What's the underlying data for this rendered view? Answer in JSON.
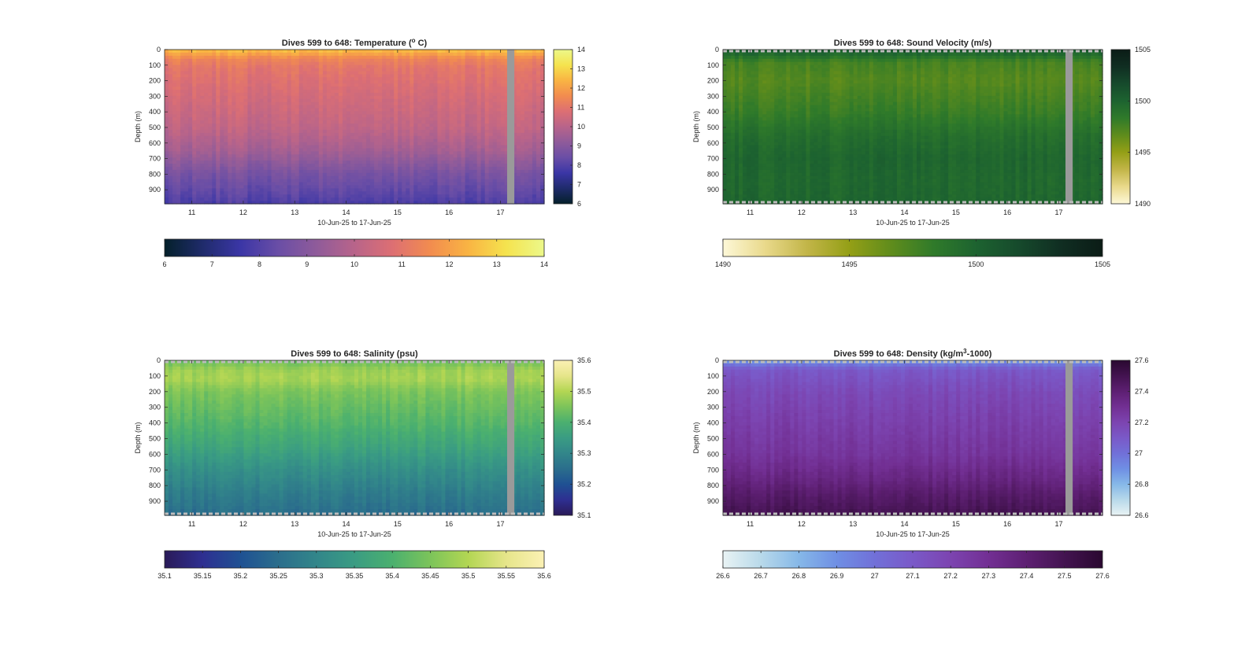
{
  "chart_data": [
    {
      "type": "heatmap",
      "id": "temperature",
      "title": "Dives 599 to 648: Temperature (",
      "title_sup": "o",
      "title_post": " C)",
      "xlabel": "10-Jun-25 to 17-Jun-25",
      "ylabel": "Depth (m)",
      "xticks": [
        "11",
        "12",
        "13",
        "14",
        "15",
        "16",
        "17"
      ],
      "xlim": [
        10.47,
        17.85
      ],
      "yticks": [
        0,
        100,
        200,
        300,
        400,
        500,
        600,
        700,
        800,
        900
      ],
      "ylim": [
        0,
        990
      ],
      "clim": [
        6,
        14
      ],
      "colorbar_ticks": [
        "6",
        "7",
        "8",
        "9",
        "10",
        "11",
        "12",
        "13",
        "14"
      ],
      "hcolorbar_ticks": [
        "6",
        "7",
        "8",
        "9",
        "10",
        "11",
        "12",
        "13",
        "14"
      ],
      "colormap": [
        "#04202a",
        "#1f2b6b",
        "#3b36a6",
        "#6a4ea6",
        "#8f5b9a",
        "#b8648a",
        "#dd6f73",
        "#f28c4f",
        "#f9b443",
        "#f5e34e",
        "#ecf88a"
      ],
      "profile": [
        {
          "d": 0,
          "v": 12.6
        },
        {
          "d": 20,
          "v": 12.3
        },
        {
          "d": 60,
          "v": 11.4
        },
        {
          "d": 120,
          "v": 11.0
        },
        {
          "d": 300,
          "v": 10.6
        },
        {
          "d": 500,
          "v": 10.2
        },
        {
          "d": 650,
          "v": 9.6
        },
        {
          "d": 800,
          "v": 8.7
        },
        {
          "d": 900,
          "v": 8.3
        },
        {
          "d": 990,
          "v": 7.9
        }
      ],
      "gap_x": [
        17.13,
        17.27
      ],
      "dashed_edges": false
    },
    {
      "type": "heatmap",
      "id": "sound_velocity",
      "title": "Dives 599 to 648: Sound Velocity (m/s)",
      "xlabel": "10-Jun-25 to 17-Jun-25",
      "ylabel": "Depth (m)",
      "xticks": [
        "11",
        "12",
        "13",
        "14",
        "15",
        "16",
        "17"
      ],
      "xlim": [
        10.47,
        17.85
      ],
      "yticks": [
        0,
        100,
        200,
        300,
        400,
        500,
        600,
        700,
        800,
        900
      ],
      "ylim": [
        0,
        990
      ],
      "clim": [
        1490,
        1505
      ],
      "colorbar_ticks": [
        "1490",
        "1495",
        "1500",
        "1505"
      ],
      "hcolorbar_ticks": [
        "1490",
        "1495",
        "1500",
        "1505"
      ],
      "colormap": [
        "#fdf8d8",
        "#e9d98b",
        "#c2b548",
        "#949f16",
        "#5f8c1c",
        "#2f7a2a",
        "#1d6330",
        "#164a2c",
        "#102e22",
        "#0b1c16"
      ],
      "profile": [
        {
          "d": 0,
          "v": 1500.5
        },
        {
          "d": 30,
          "v": 1499.5
        },
        {
          "d": 80,
          "v": 1497.5
        },
        {
          "d": 200,
          "v": 1497.0
        },
        {
          "d": 400,
          "v": 1498.0
        },
        {
          "d": 550,
          "v": 1499.2
        },
        {
          "d": 700,
          "v": 1499.8
        },
        {
          "d": 850,
          "v": 1499.6
        },
        {
          "d": 990,
          "v": 1499.8
        }
      ],
      "gap_x": [
        17.13,
        17.27
      ],
      "dashed_edges": true
    },
    {
      "type": "heatmap",
      "id": "salinity",
      "title": "Dives 599 to 648: Salinity (psu)",
      "xlabel": "10-Jun-25 to 17-Jun-25",
      "ylabel": "Depth (m)",
      "xticks": [
        "11",
        "12",
        "13",
        "14",
        "15",
        "16",
        "17"
      ],
      "xlim": [
        10.47,
        17.85
      ],
      "yticks": [
        0,
        100,
        200,
        300,
        400,
        500,
        600,
        700,
        800,
        900
      ],
      "ylim": [
        0,
        990
      ],
      "clim": [
        35.1,
        35.6
      ],
      "colorbar_ticks": [
        "35.1",
        "35.2",
        "35.3",
        "35.4",
        "35.5",
        "35.6"
      ],
      "hcolorbar_ticks": [
        "35.1",
        "35.15",
        "35.2",
        "35.25",
        "35.3",
        "35.35",
        "35.4",
        "35.45",
        "35.5",
        "35.55",
        "35.6"
      ],
      "colormap": [
        "#2a1a58",
        "#2e2f91",
        "#1f5193",
        "#2b6e8c",
        "#32868a",
        "#3a9c83",
        "#4bb06f",
        "#7cc45a",
        "#b3d653",
        "#e6e58a",
        "#fbf1b4"
      ],
      "profile": [
        {
          "d": 0,
          "v": 35.43
        },
        {
          "d": 60,
          "v": 35.48
        },
        {
          "d": 120,
          "v": 35.49
        },
        {
          "d": 200,
          "v": 35.45
        },
        {
          "d": 400,
          "v": 35.41
        },
        {
          "d": 550,
          "v": 35.37
        },
        {
          "d": 700,
          "v": 35.32
        },
        {
          "d": 850,
          "v": 35.28
        },
        {
          "d": 990,
          "v": 35.25
        }
      ],
      "gap_x": [
        17.13,
        17.27
      ],
      "dashed_edges": true
    },
    {
      "type": "heatmap",
      "id": "density",
      "title": "Dives 599 to 648: Density (kg/m",
      "title_sup": "3",
      "title_post": "-1000)",
      "xlabel": "10-Jun-25 to 17-Jun-25",
      "ylabel": "Depth (m)",
      "xticks": [
        "11",
        "12",
        "13",
        "14",
        "15",
        "16",
        "17"
      ],
      "xlim": [
        10.47,
        17.85
      ],
      "yticks": [
        0,
        100,
        200,
        300,
        400,
        500,
        600,
        700,
        800,
        900
      ],
      "ylim": [
        0,
        990
      ],
      "clim": [
        26.6,
        27.6
      ],
      "colorbar_ticks": [
        "26.6",
        "26.8",
        "27",
        "27.2",
        "27.4",
        "27.6"
      ],
      "hcolorbar_ticks": [
        "26.6",
        "26.7",
        "26.8",
        "26.9",
        "27",
        "27.1",
        "27.2",
        "27.3",
        "27.4",
        "27.5",
        "27.6"
      ],
      "colormap": [
        "#e9f3f4",
        "#b8d9ea",
        "#86b8e8",
        "#6f8fe4",
        "#7170d8",
        "#7a59c8",
        "#7c44b0",
        "#722f93",
        "#5d1f72",
        "#431350",
        "#2a0830"
      ],
      "profile": [
        {
          "d": 0,
          "v": 26.85
        },
        {
          "d": 20,
          "v": 26.95
        },
        {
          "d": 60,
          "v": 27.1
        },
        {
          "d": 200,
          "v": 27.17
        },
        {
          "d": 400,
          "v": 27.22
        },
        {
          "d": 600,
          "v": 27.27
        },
        {
          "d": 750,
          "v": 27.35
        },
        {
          "d": 850,
          "v": 27.42
        },
        {
          "d": 990,
          "v": 27.5
        }
      ],
      "gap_x": [
        17.13,
        17.27
      ],
      "dashed_edges": true
    }
  ]
}
